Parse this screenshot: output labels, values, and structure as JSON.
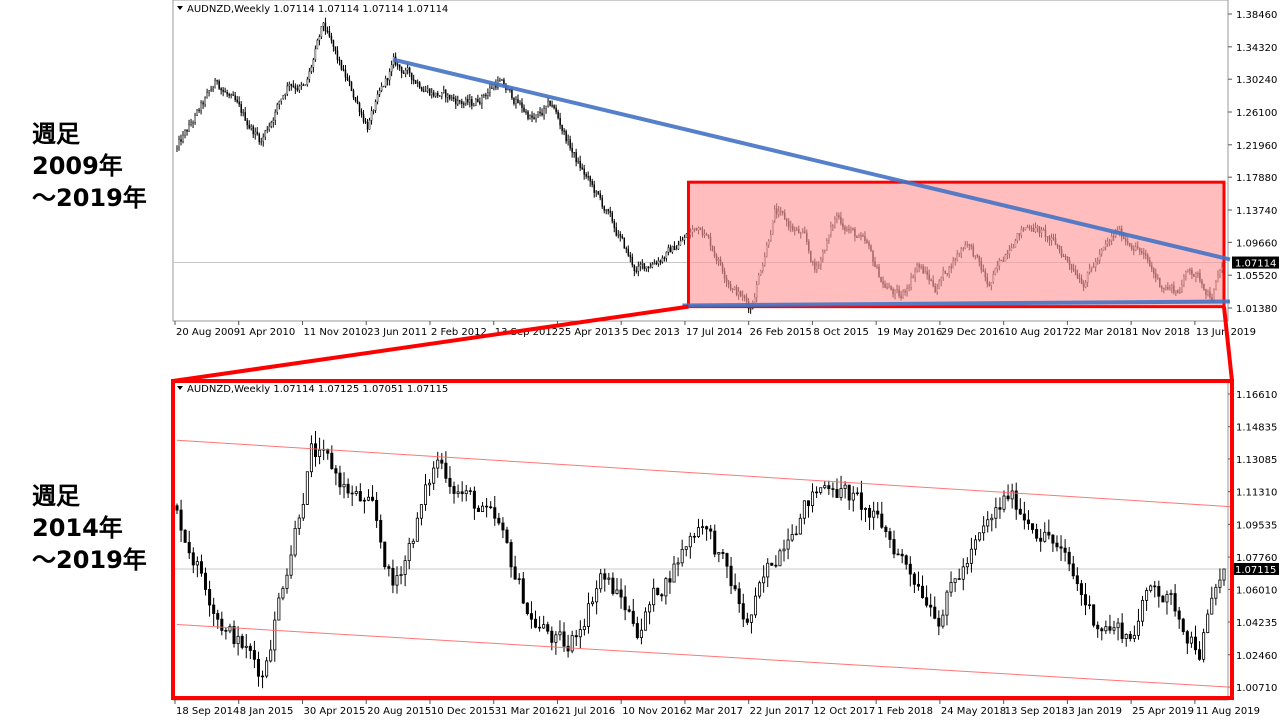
{
  "side_labels": {
    "top": "週足\n2009年\n～2019年",
    "bottom": "週足\n2014年\n～2019年"
  },
  "colors": {
    "trendline": "#4472c4",
    "highlight_box": "#ff0000",
    "highlight_fill": "#ff9999",
    "channel": "#ff6666",
    "bull_body": "#ffffff",
    "bear_body": "#000000"
  },
  "chart_data": [
    {
      "type": "candlestick",
      "header": "AUDNZD,Weekly  1.07114 1.07114 1.07114 1.07114",
      "symbol": "AUDNZD",
      "timeframe": "Weekly",
      "date_range": [
        "2009-08-20",
        "2019-08-22"
      ],
      "ylim": [
        1.0,
        1.3965
      ],
      "y_ticks": [
        "1.38460",
        "1.34320",
        "1.30240",
        "1.26100",
        "1.21960",
        "1.17880",
        "1.13740",
        "1.09660",
        "1.05520",
        "1.01380"
      ],
      "x_ticks": [
        "20 Aug 2009",
        "1 Apr 2010",
        "11 Nov 2010",
        "23 Jun 2011",
        "2 Feb 2012",
        "13 Sep 2012",
        "25 Apr 2013",
        "5 Dec 2013",
        "17 Jul 2014",
        "26 Feb 2015",
        "8 Oct 2015",
        "19 May 2016",
        "29 Dec 2016",
        "10 Aug 2017",
        "22 Mar 2018",
        "1 Nov 2018",
        "13 Jun 2019"
      ],
      "current_price": "1.07114",
      "approx_close_path": [
        [
          "2009-08-20",
          1.215
        ],
        [
          "2010-01-07",
          1.3
        ],
        [
          "2010-06-10",
          1.225
        ],
        [
          "2010-09-16",
          1.3
        ],
        [
          "2010-11-11",
          1.29
        ],
        [
          "2011-01-13",
          1.37
        ],
        [
          "2011-03-10",
          1.32
        ],
        [
          "2011-06-16",
          1.245
        ],
        [
          "2011-09-15",
          1.322
        ],
        [
          "2012-02-02",
          1.285
        ],
        [
          "2012-06-14",
          1.27
        ],
        [
          "2012-09-13",
          1.3
        ],
        [
          "2013-01-17",
          1.25
        ],
        [
          "2013-03-21",
          1.27
        ],
        [
          "2013-06-13",
          1.2
        ],
        [
          "2013-09-19",
          1.14
        ],
        [
          "2014-01-09",
          1.06
        ],
        [
          "2014-05-08",
          1.085
        ],
        [
          "2014-08-21",
          1.12
        ],
        [
          "2014-12-11",
          1.04
        ],
        [
          "2015-02-12",
          1.015
        ],
        [
          "2015-05-07",
          1.135
        ],
        [
          "2015-08-20",
          1.1
        ],
        [
          "2015-09-24",
          1.06
        ],
        [
          "2015-12-10",
          1.13
        ],
        [
          "2016-03-24",
          1.09
        ],
        [
          "2016-05-19",
          1.045
        ],
        [
          "2016-07-21",
          1.025
        ],
        [
          "2016-09-15",
          1.07
        ],
        [
          "2016-11-17",
          1.04
        ],
        [
          "2017-03-09",
          1.1
        ],
        [
          "2017-05-25",
          1.04
        ],
        [
          "2017-08-10",
          1.1
        ],
        [
          "2017-10-19",
          1.12
        ],
        [
          "2018-01-18",
          1.09
        ],
        [
          "2018-04-19",
          1.05
        ],
        [
          "2018-08-16",
          1.11
        ],
        [
          "2018-10-25",
          1.09
        ],
        [
          "2019-01-10",
          1.045
        ],
        [
          "2019-03-14",
          1.035
        ],
        [
          "2019-04-25",
          1.065
        ],
        [
          "2019-07-11",
          1.03
        ],
        [
          "2019-08-22",
          1.071
        ]
      ],
      "annotations": {
        "upper_trendline": [
          [
            "2011-09-15",
            1.327
          ],
          [
            "2019-08-22",
            1.075
          ]
        ],
        "lower_trendline": [
          [
            "2014-06-19",
            1.017
          ],
          [
            "2019-08-22",
            1.022
          ]
        ],
        "highlight_box": {
          "from": "2014-07-17",
          "to": "2019-08-22",
          "price_top": 1.1725,
          "price_bottom": 1.0155
        }
      }
    },
    {
      "type": "candlestick",
      "header": "AUDNZD,Weekly  1.07114 1.07125 1.07051 1.07115",
      "symbol": "AUDNZD",
      "timeframe": "Weekly",
      "date_range": [
        "2014-09-18",
        "2019-08-22"
      ],
      "ylim": [
        0.999,
        1.174
      ],
      "y_ticks": [
        "1.16610",
        "1.14835",
        "1.13085",
        "1.11310",
        "1.09535",
        "1.07760",
        "1.06010",
        "1.04235",
        "1.02460",
        "1.00710"
      ],
      "x_ticks": [
        "18 Sep 2014",
        "8 Jan 2015",
        "30 Apr 2015",
        "20 Aug 2015",
        "10 Dec 2015",
        "31 Mar 2016",
        "21 Jul 2016",
        "10 Nov 2016",
        "2 Mar 2017",
        "22 Jun 2017",
        "12 Oct 2017",
        "1 Feb 2018",
        "24 May 2018",
        "13 Sep 2018",
        "3 Jan 2019",
        "25 Apr 2019",
        "11 Aug 2019"
      ],
      "current_price": "1.07115",
      "annotations": {
        "channel_upper": [
          [
            "2014-09-18",
            1.141
          ],
          [
            "2019-08-22",
            1.105
          ]
        ],
        "channel_lower": [
          [
            "2014-09-18",
            1.041
          ],
          [
            "2019-08-22",
            1.007
          ]
        ]
      }
    }
  ]
}
